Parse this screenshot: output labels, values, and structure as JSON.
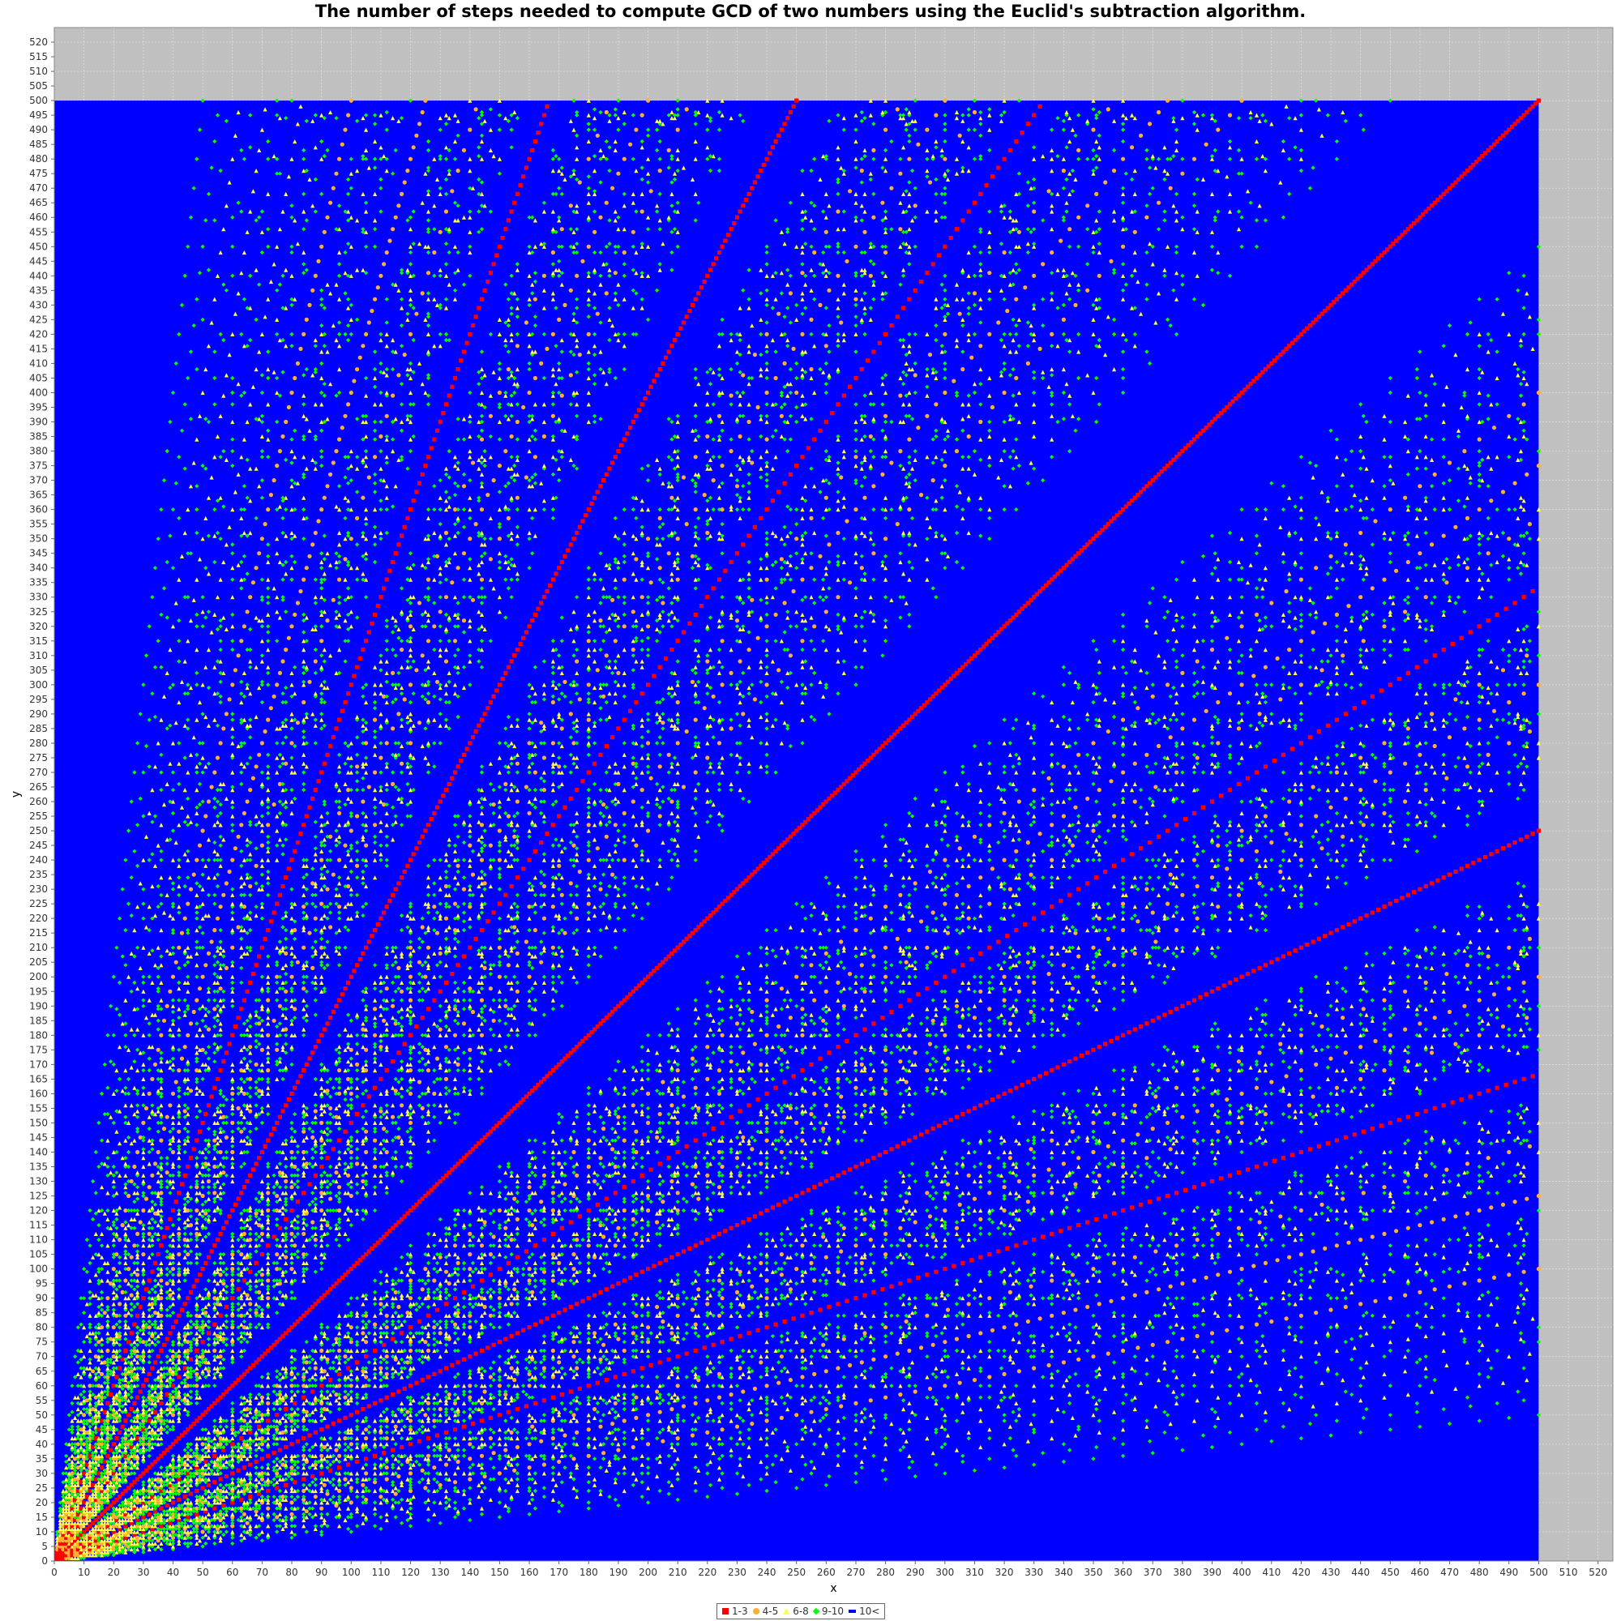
{
  "chart_data": {
    "type": "scatter",
    "title": "The number of steps needed to compute GCD of two numbers using the Euclid's subtraction algorithm.",
    "xlabel": "x",
    "ylabel": "y",
    "xlim": [
      0,
      525
    ],
    "ylim": [
      0,
      525
    ],
    "x_tick_step": 10,
    "y_tick_step": 5,
    "grid": true,
    "plot_background": "#c0c0c0",
    "data_region": {
      "x": [
        0,
        500
      ],
      "y": [
        0,
        500
      ]
    },
    "legend_position": "bottom-center",
    "categories": [
      {
        "label": "1-3",
        "color": "#ff0000",
        "shape": "square",
        "steps_min": 1,
        "steps_max": 3
      },
      {
        "label": "4-5",
        "color": "#ffb033",
        "shape": "circle",
        "steps_min": 4,
        "steps_max": 5
      },
      {
        "label": "6-8",
        "color": "#ffff44",
        "shape": "triangle",
        "steps_min": 6,
        "steps_max": 8
      },
      {
        "label": "9-10",
        "color": "#00ff00",
        "shape": "diamond",
        "steps_min": 9,
        "steps_max": 10
      },
      {
        "label": "10<",
        "color": "#0000ff",
        "shape": "bar",
        "steps_min": 11,
        "steps_max": null
      }
    ],
    "red_rays_slopes": [
      3,
      2,
      1.5,
      1,
      0.6667,
      0.5,
      0.3333
    ],
    "tick_labels_shown": {
      "x": [
        "0",
        "10",
        "20",
        "30",
        "40",
        "50",
        "60",
        "70",
        "80",
        "90",
        "100",
        "110",
        "120",
        "130",
        "140",
        "150",
        "160",
        "170",
        "180",
        "190",
        "200",
        "210",
        "220",
        "230",
        "240",
        "250",
        "260",
        "270",
        "280",
        "290",
        "300",
        "310",
        "320",
        "330",
        "340",
        "350",
        "360",
        "370",
        "380",
        "390",
        "400",
        "410",
        "420",
        "430",
        "440",
        "450",
        "460",
        "470",
        "480",
        "490",
        "500",
        "510",
        "520"
      ],
      "y_step": 5
    }
  }
}
